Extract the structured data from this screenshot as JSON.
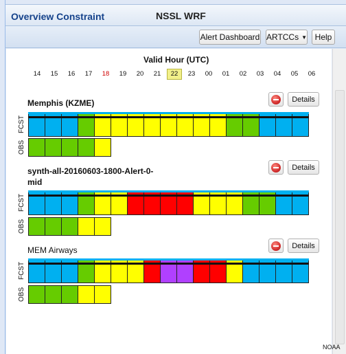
{
  "header": {
    "title": "Overview Constraint",
    "model": "NSSL WRF"
  },
  "toolbar": {
    "alert_dashboard": "Alert Dashboard",
    "artccs": "ARTCCs",
    "help": "Help"
  },
  "timeline": {
    "label": "Valid Hour (UTC)",
    "hours": [
      "14",
      "15",
      "16",
      "17",
      "18",
      "19",
      "20",
      "21",
      "22",
      "23",
      "00",
      "01",
      "02",
      "03",
      "04",
      "05",
      "06"
    ],
    "highlight_red_hour": "18",
    "current_hour": "22"
  },
  "colors": {
    "blue": "#00b0f0",
    "green": "#66cc00",
    "yellow": "#ffff00",
    "red": "#ff0000",
    "purple": "#b040ff",
    "white": "#ffffff"
  },
  "panels": [
    {
      "name": "Memphis (KZME)",
      "details": "Details",
      "fcst_label": "FCST",
      "obs_label": "OBS",
      "fcst": [
        "blue",
        "blue",
        "blue",
        "green",
        "yellow",
        "yellow",
        "yellow",
        "yellow",
        "yellow",
        "yellow",
        "yellow",
        "yellow",
        "green",
        "green",
        "blue",
        "blue",
        "blue"
      ],
      "obs": [
        "green",
        "green",
        "green",
        "green",
        "yellow"
      ]
    },
    {
      "name": "synth-all-20160603-1800-Alert-0-mid",
      "details": "Details",
      "fcst_label": "FCST",
      "obs_label": "OBS",
      "fcst": [
        "blue",
        "blue",
        "blue",
        "green",
        "yellow",
        "yellow",
        "red",
        "red",
        "red",
        "red",
        "yellow",
        "yellow",
        "yellow",
        "green",
        "green",
        "blue",
        "blue"
      ],
      "obs": [
        "green",
        "green",
        "green",
        "yellow",
        "yellow"
      ]
    },
    {
      "name": "MEM Airways",
      "details": "Details",
      "fcst_label": "FCST",
      "obs_label": "OBS",
      "fcst": [
        "blue",
        "blue",
        "blue",
        "green",
        "yellow",
        "yellow",
        "yellow",
        "red",
        "purple",
        "purple",
        "red",
        "red",
        "yellow",
        "blue",
        "blue",
        "blue",
        "blue"
      ],
      "obs": [
        "green",
        "green",
        "green",
        "yellow",
        "yellow"
      ]
    }
  ],
  "footer": {
    "noaa": "NOAA"
  }
}
